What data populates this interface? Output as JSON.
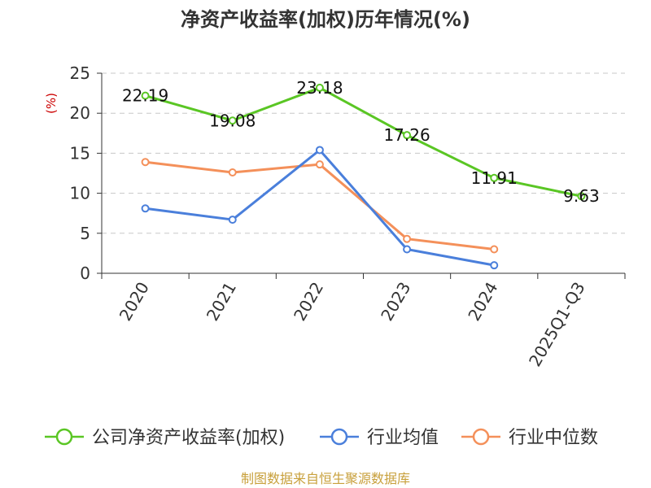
{
  "chart_data": {
    "type": "line",
    "title": "净资产收益率(加权)历年情况(%)",
    "ylabel": "(%)",
    "xlabel": "",
    "categories": [
      "2020",
      "2021",
      "2022",
      "2023",
      "2024",
      "2025Q1-Q3"
    ],
    "ylim": [
      0,
      25
    ],
    "yticks": [
      0,
      5,
      10,
      15,
      20,
      25
    ],
    "grid": "horizontal-dashed",
    "legend_position": "bottom",
    "series": [
      {
        "name": "公司净资产收益率(加权)",
        "color": "#5ac624",
        "values": [
          22.19,
          19.08,
          23.18,
          17.26,
          11.91,
          9.63
        ],
        "labels": [
          "22.19",
          "19.08",
          "23.18",
          "17.26",
          "11.91",
          "9.63"
        ]
      },
      {
        "name": "行业均值",
        "color": "#4a7fdb",
        "values": [
          8.1,
          6.7,
          15.4,
          3.0,
          1.0,
          null
        ]
      },
      {
        "name": "行业中位数",
        "color": "#f4905a",
        "values": [
          13.9,
          12.6,
          13.6,
          4.3,
          3.0,
          null
        ]
      }
    ],
    "source": "制图数据来自恒生聚源数据库"
  }
}
